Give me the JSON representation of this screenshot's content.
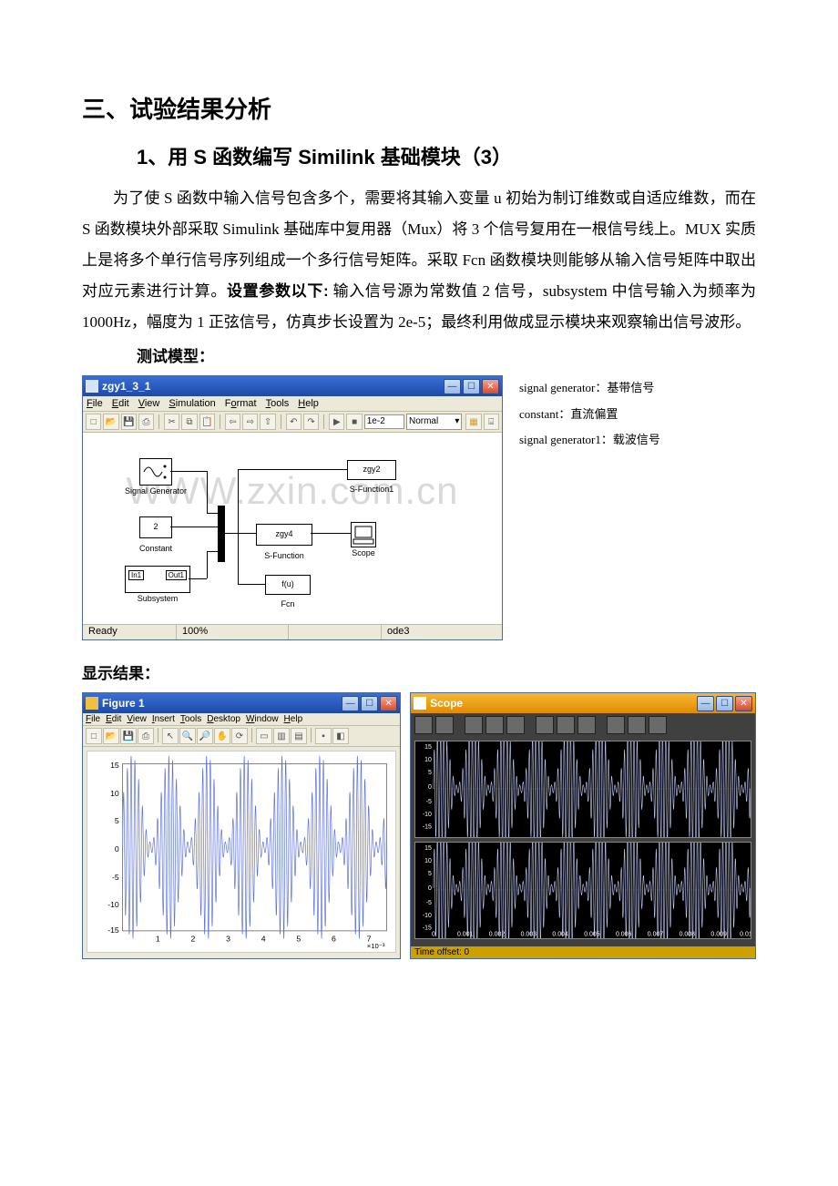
{
  "heading1": "三、试验结果分析",
  "heading2": "1、用 S 函数编写 Similink 基础模块（3）",
  "paragraph": "为了使 S 函数中输入信号包含多个，需要将其输入变量 u 初始为制订维数或自适应维数，而在 S 函数模块外部采取 Simulink 基础库中复用器（Mux）将 3 个信号复用在一根信号线上。MUX 实质上是将多个单行信号序列组成一个多行信号矩阵。采取 Fcn 函数模块则能够从输入信号矩阵中取出对应元素进行计算。",
  "paragraph_bold_prefix": "设置参数以下:",
  "paragraph2": " 输入信号源为常数值 2 信号，subsystem 中信号输入为频率为 1000Hz，幅度为 1 正弦信号，仿真步长设置为 2e-5；最终利用做成显示模块来观察输出信号波形。",
  "test_model_label": "测试模型：",
  "model_window": {
    "title": "zgy1_3_1",
    "menu": [
      "File",
      "Edit",
      "View",
      "Simulation",
      "Format",
      "Tools",
      "Help"
    ],
    "time_input": "1e-2",
    "mode_select": "Normal",
    "status_left": "Ready",
    "status_zoom": "100%",
    "status_solver": "ode3",
    "blocks": {
      "siggen": "Signal\nGenerator",
      "constant": "Constant",
      "constant_val": "2",
      "subsystem": "Subsystem",
      "in1": "In1",
      "out1": "Out1",
      "sfunc_main": "S-Function",
      "sfunc_main_name": "zgy4",
      "sfunc_top": "S-Function1",
      "sfunc_top_name": "zgy2",
      "fcn": "Fcn",
      "fcn_name": "f(u)",
      "scope": "Scope"
    },
    "watermark": "WWW.zxin.com.cn"
  },
  "annotations": {
    "line1": "signal generator：基带信号",
    "line2": "constant：直流偏置",
    "line3": "signal generator1：载波信号"
  },
  "result_label": "显示结果：",
  "figure1": {
    "title": "Figure 1",
    "menu": [
      "File",
      "Edit",
      "View",
      "Insert",
      "Tools",
      "Desktop",
      "Window",
      "Help"
    ],
    "yticks": [
      "15",
      "10",
      "5",
      "0",
      "-5",
      "-10",
      "-15"
    ],
    "xticks": [
      "1",
      "2",
      "3",
      "4",
      "5",
      "6",
      "7"
    ],
    "x_exp": "×10⁻³",
    "ylim": [
      -15,
      15
    ],
    "line_color": "#5a6fe0",
    "bg_color": "#ffffff"
  },
  "scope": {
    "title": "Scope",
    "yticks": [
      "15",
      "10",
      "5",
      "0",
      "-5",
      "-10",
      "-15"
    ],
    "xticks": [
      "0",
      "0.001",
      "0.002",
      "0.003",
      "0.004",
      "0.005",
      "0.006",
      "0.007",
      "0.008",
      "0.009",
      "0.01"
    ],
    "ylim": [
      -15,
      15
    ],
    "status": "Time offset: 0",
    "line_color": "#c7cffb",
    "bg_color": "#000000"
  }
}
